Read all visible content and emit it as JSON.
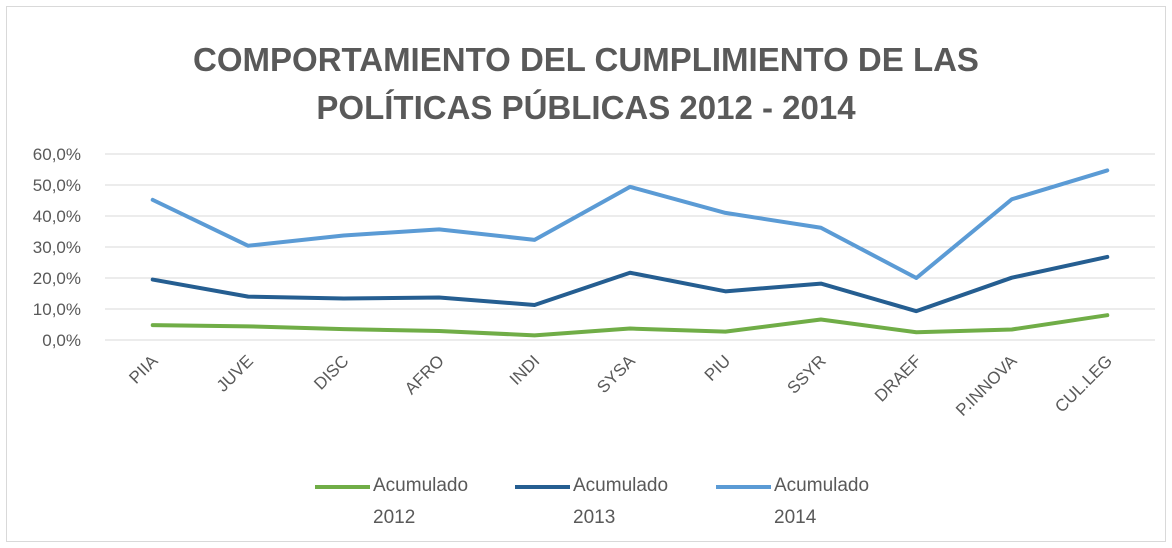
{
  "chart_data": {
    "type": "line",
    "title": "COMPORTAMIENTO DEL CUMPLIMIENTO DE LAS POLÍTICAS PÚBLICAS 2012 - 2014",
    "categories": [
      "PIIA",
      "JUVE",
      "DISC",
      "AFRO",
      "INDI",
      "SYSA",
      "PIU",
      "SSYR",
      "DRAEF",
      "P.INNOVA",
      "CUL.LEG"
    ],
    "series": [
      {
        "name": "Acumulado 2012",
        "color": "#70ad47",
        "values": [
          4.8,
          4.4,
          3.5,
          2.9,
          1.5,
          3.7,
          2.7,
          6.6,
          2.5,
          3.4,
          8.0
        ]
      },
      {
        "name": "Acumulado 2013",
        "color": "#255e91",
        "values": [
          19.5,
          14.0,
          13.4,
          13.7,
          11.3,
          21.7,
          15.7,
          18.2,
          9.3,
          20.1,
          26.8
        ]
      },
      {
        "name": "Acumulado 2014",
        "color": "#5b9bd5",
        "values": [
          45.2,
          30.4,
          33.7,
          35.7,
          32.3,
          49.4,
          41.0,
          36.2,
          20.0,
          45.4,
          54.7
        ]
      }
    ],
    "ylim": [
      0,
      60
    ],
    "yticks": [
      {
        "value": 0,
        "label": "0,0%"
      },
      {
        "value": 10,
        "label": "10,0%"
      },
      {
        "value": 20,
        "label": "20,0%"
      },
      {
        "value": 30,
        "label": "30,0%"
      },
      {
        "value": 40,
        "label": "40,0%"
      },
      {
        "value": 50,
        "label": "50,0%"
      },
      {
        "value": 60,
        "label": "60,0%"
      }
    ],
    "grid": true,
    "legend": "bottom"
  }
}
